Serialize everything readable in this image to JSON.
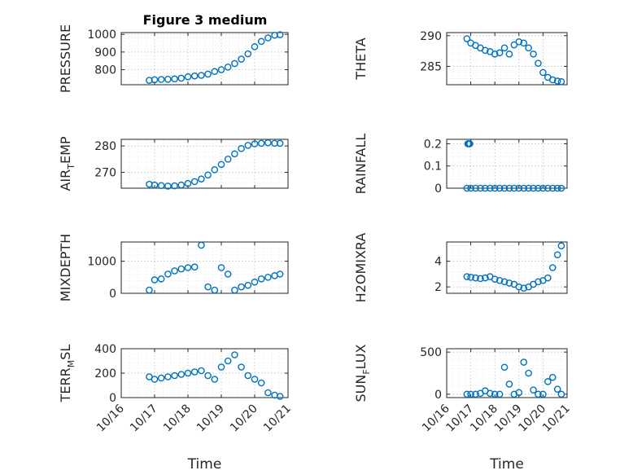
{
  "figure_title": "Figure 3 medium",
  "colors": {
    "series": "#0072BD",
    "axis": "#262626",
    "grid": "#b8b8b8"
  },
  "chart_data": [
    {
      "type": "scatter",
      "id": "pressure",
      "ylabel": "PRESSURE",
      "ylabel_sub": "",
      "title": "Figure 3 medium",
      "ylim": [
        715,
        1010
      ],
      "yticks": [
        800,
        900,
        1000
      ],
      "ytick_labels": [
        "800",
        "900",
        "1000"
      ],
      "x": [
        0.84,
        1.0,
        1.2,
        1.4,
        1.6,
        1.8,
        2.0,
        2.2,
        2.4,
        2.6,
        2.8,
        3.0,
        3.2,
        3.4,
        3.6,
        3.8,
        4.0,
        4.2,
        4.4,
        4.6,
        4.76
      ],
      "y": [
        740,
        743,
        745,
        746,
        748,
        752,
        760,
        765,
        768,
        775,
        790,
        800,
        815,
        835,
        860,
        890,
        930,
        960,
        980,
        995,
        998
      ]
    },
    {
      "type": "scatter",
      "id": "theta",
      "ylabel": "THETA",
      "ylabel_sub": "",
      "ylim": [
        282,
        290.5
      ],
      "yticks": [
        285,
        290
      ],
      "ytick_labels": [
        "285",
        "290"
      ],
      "x": [
        0.84,
        1.0,
        1.2,
        1.4,
        1.6,
        1.8,
        2.0,
        2.2,
        2.4,
        2.6,
        2.8,
        3.0,
        3.2,
        3.4,
        3.6,
        3.8,
        4.0,
        4.2,
        4.4,
        4.6,
        4.76
      ],
      "y": [
        289.5,
        288.8,
        288.4,
        288.0,
        287.6,
        287.4,
        287.0,
        287.2,
        288.0,
        287.0,
        288.5,
        289.0,
        288.8,
        288.0,
        287.0,
        285.5,
        284.0,
        283.2,
        282.8,
        282.6,
        282.5
      ]
    },
    {
      "type": "scatter",
      "id": "air_temp",
      "ylabel": "AIR",
      "ylabel_sub": "T",
      "ylabel_suffix": "EMP",
      "ylim": [
        264,
        282.5
      ],
      "yticks": [
        270,
        280
      ],
      "ytick_labels": [
        "270",
        "280"
      ],
      "x": [
        0.84,
        1.0,
        1.2,
        1.4,
        1.6,
        1.8,
        2.0,
        2.2,
        2.4,
        2.6,
        2.8,
        3.0,
        3.2,
        3.4,
        3.6,
        3.8,
        4.0,
        4.2,
        4.4,
        4.6,
        4.76
      ],
      "y": [
        265.5,
        265.2,
        265.0,
        264.8,
        264.9,
        265.2,
        265.8,
        266.5,
        267.5,
        269.0,
        271.0,
        273.0,
        275.0,
        277.0,
        279.0,
        280.2,
        280.8,
        281.0,
        281.2,
        281.0,
        281.0
      ]
    },
    {
      "type": "scatter",
      "id": "rainfall",
      "ylabel": "RAINFALL",
      "ylabel_sub": "",
      "ylim": [
        0,
        0.22
      ],
      "yticks": [
        0,
        0.1,
        0.2
      ],
      "ytick_labels": [
        "0",
        "0.1",
        "0.2"
      ],
      "x": [
        0.84,
        0.88,
        0.92,
        0.96,
        1.0,
        1.2,
        1.4,
        1.6,
        1.8,
        2.0,
        2.2,
        2.4,
        2.6,
        2.8,
        3.0,
        3.2,
        3.4,
        3.6,
        3.8,
        4.0,
        4.2,
        4.4,
        4.6,
        4.76
      ],
      "y": [
        0,
        0.2,
        0.2,
        0.2,
        0,
        0,
        0,
        0,
        0,
        0,
        0,
        0,
        0,
        0,
        0,
        0,
        0,
        0,
        0,
        0,
        0,
        0,
        0,
        0
      ]
    },
    {
      "type": "scatter",
      "id": "mixdepth",
      "ylabel": "MIXDEPTH",
      "ylabel_sub": "",
      "ylim": [
        0,
        1600
      ],
      "yticks": [
        0,
        1000
      ],
      "ytick_labels": [
        "0",
        "1000"
      ],
      "x": [
        0.84,
        1.0,
        1.2,
        1.4,
        1.6,
        1.8,
        2.0,
        2.2,
        2.4,
        2.6,
        2.8,
        3.0,
        3.2,
        3.4,
        3.6,
        3.8,
        4.0,
        4.2,
        4.4,
        4.6,
        4.76
      ],
      "y": [
        100,
        420,
        450,
        600,
        700,
        760,
        800,
        820,
        1500,
        200,
        100,
        800,
        600,
        100,
        200,
        250,
        350,
        450,
        500,
        550,
        600
      ]
    },
    {
      "type": "scatter",
      "id": "h2omixra",
      "ylabel": "H2OMIXRA",
      "ylabel_sub": "",
      "ylim": [
        1.5,
        5.5
      ],
      "yticks": [
        2,
        4
      ],
      "ytick_labels": [
        "2",
        "4"
      ],
      "x": [
        0.84,
        1.0,
        1.2,
        1.4,
        1.6,
        1.8,
        2.0,
        2.2,
        2.4,
        2.6,
        2.8,
        3.0,
        3.2,
        3.4,
        3.6,
        3.8,
        4.0,
        4.2,
        4.4,
        4.6,
        4.76
      ],
      "y": [
        2.8,
        2.75,
        2.7,
        2.65,
        2.7,
        2.8,
        2.6,
        2.5,
        2.4,
        2.3,
        2.2,
        2.0,
        1.9,
        2.0,
        2.2,
        2.4,
        2.5,
        2.7,
        3.5,
        4.5,
        5.2
      ]
    },
    {
      "type": "scatter",
      "id": "terr_msl",
      "ylabel": "TERR",
      "ylabel_sub": "M",
      "ylabel_suffix": "SL",
      "ylim": [
        0,
        400
      ],
      "yticks": [
        0,
        200,
        400
      ],
      "ytick_labels": [
        "0",
        "200",
        "400"
      ],
      "x": [
        0.84,
        1.0,
        1.2,
        1.4,
        1.6,
        1.8,
        2.0,
        2.2,
        2.4,
        2.6,
        2.8,
        3.0,
        3.2,
        3.4,
        3.6,
        3.8,
        4.0,
        4.2,
        4.4,
        4.6,
        4.76
      ],
      "y": [
        170,
        150,
        160,
        170,
        180,
        190,
        200,
        210,
        220,
        180,
        150,
        250,
        300,
        350,
        250,
        180,
        150,
        120,
        40,
        20,
        10
      ]
    },
    {
      "type": "scatter",
      "id": "sun_flux",
      "ylabel": "SUN",
      "ylabel_sub": "F",
      "ylabel_suffix": "LUX",
      "ylim": [
        -40,
        540
      ],
      "yticks": [
        0,
        500
      ],
      "ytick_labels": [
        "0",
        "500"
      ],
      "x": [
        0.84,
        1.0,
        1.2,
        1.4,
        1.6,
        1.8,
        2.0,
        2.2,
        2.4,
        2.6,
        2.8,
        3.0,
        3.2,
        3.4,
        3.6,
        3.8,
        4.0,
        4.2,
        4.4,
        4.6,
        4.76
      ],
      "y": [
        0,
        0,
        0,
        10,
        40,
        10,
        0,
        0,
        320,
        120,
        0,
        20,
        380,
        250,
        50,
        0,
        0,
        150,
        200,
        60,
        0
      ]
    }
  ],
  "shared_x": {
    "label": "Time",
    "xlim": [
      0,
      5
    ],
    "ticks": [
      0,
      1,
      2,
      3,
      4,
      5
    ],
    "tick_labels": [
      "10/16",
      "10/17",
      "10/18",
      "10/19",
      "10/20",
      "10/21"
    ]
  }
}
